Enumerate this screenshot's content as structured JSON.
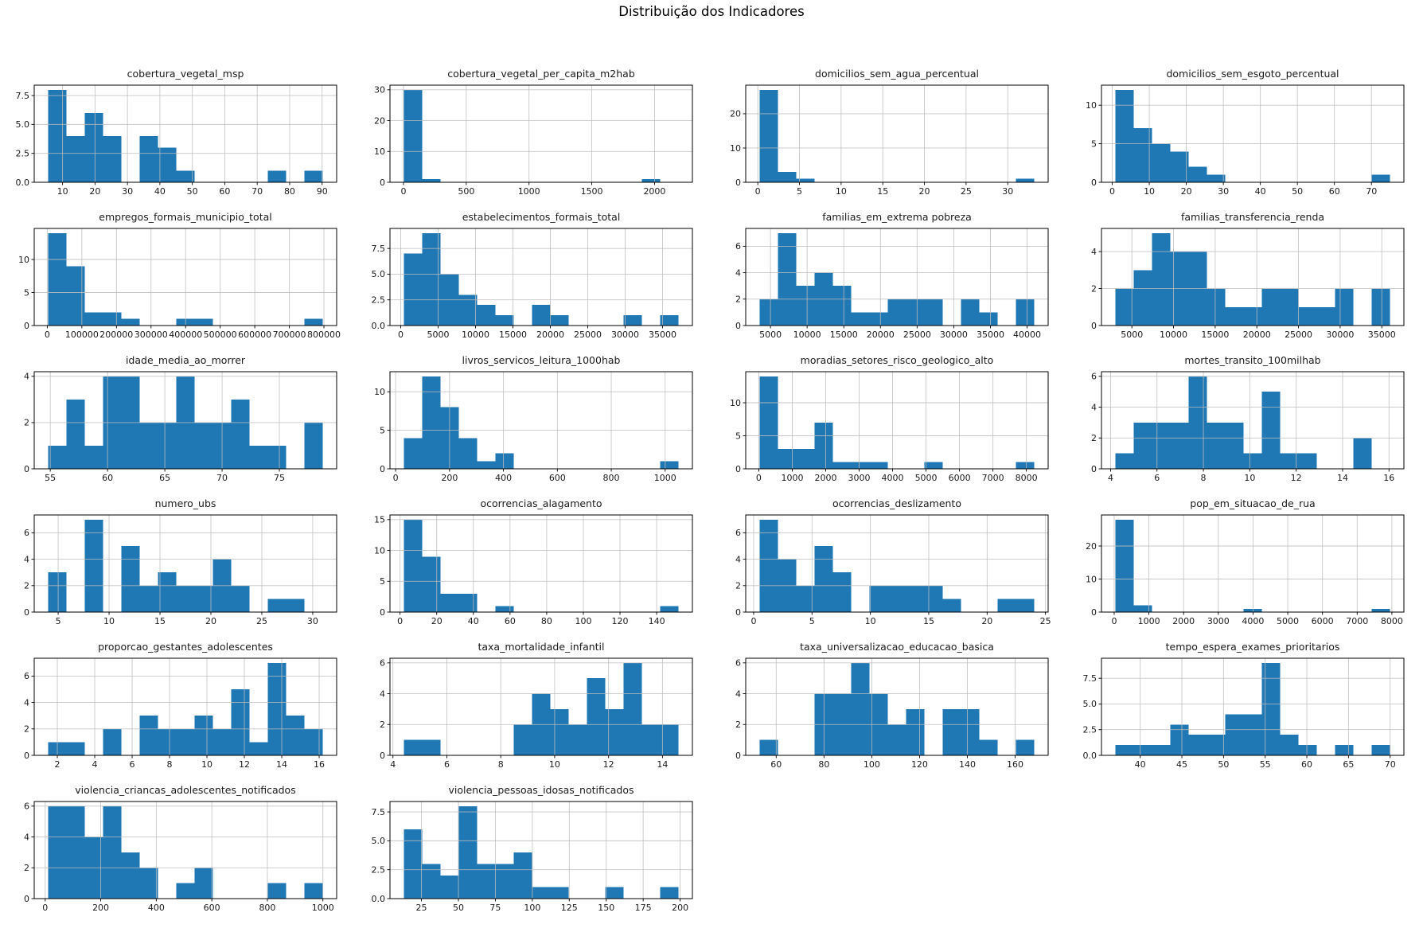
{
  "figure": {
    "suptitle": "Distribuição dos Indicadores"
  },
  "style": {
    "bar_color": "#1f77b4",
    "grid_color": "#bdbdbd",
    "spine_color": "#000000",
    "text_color": "#1a1a1a"
  },
  "chart_data": [
    {
      "type": "histogram",
      "title": "cobertura_vegetal_msp",
      "bin_start": 5.5,
      "bin_width": 5.65,
      "counts": [
        8,
        4,
        6,
        4,
        0,
        4,
        3,
        1,
        0,
        0,
        0,
        0,
        1,
        0,
        1
      ],
      "xtick_vals": [
        10,
        20,
        30,
        40,
        50,
        60,
        70,
        80,
        90
      ],
      "xtick_labels": [
        "10",
        "20",
        "30",
        "40",
        "50",
        "60",
        "70",
        "80",
        "90"
      ],
      "ytick_vals": [
        0,
        2.5,
        5,
        7.5
      ],
      "ytick_labels": [
        "0.0",
        "2.5",
        "5.0",
        "7.5"
      ],
      "ymax": 8
    },
    {
      "type": "histogram",
      "title": "cobertura_vegetal_per_capita_m2hab",
      "bin_start": 2,
      "bin_width": 146,
      "counts": [
        30,
        1,
        0,
        0,
        0,
        0,
        0,
        0,
        0,
        0,
        0,
        0,
        0,
        1,
        0
      ],
      "xtick_vals": [
        0,
        500,
        1000,
        1500,
        2000
      ],
      "xtick_labels": [
        "0",
        "500",
        "1000",
        "1500",
        "2000"
      ],
      "ytick_vals": [
        0,
        10,
        20,
        30
      ],
      "ytick_labels": [
        "0",
        "10",
        "20",
        "30"
      ],
      "ymax": 30
    },
    {
      "type": "histogram",
      "title": "domicilios_sem_agua_percentual",
      "bin_start": 0.2,
      "bin_width": 2.2,
      "counts": [
        27,
        3,
        1,
        0,
        0,
        0,
        0,
        0,
        0,
        0,
        0,
        0,
        0,
        0,
        1
      ],
      "xtick_vals": [
        0,
        5,
        10,
        15,
        20,
        25,
        30
      ],
      "xtick_labels": [
        "0",
        "5",
        "10",
        "15",
        "20",
        "25",
        "30"
      ],
      "ytick_vals": [
        0,
        10,
        20
      ],
      "ytick_labels": [
        "0",
        "10",
        "20"
      ],
      "ymax": 27
    },
    {
      "type": "histogram",
      "title": "domicilios_sem_esgoto_percentual",
      "bin_start": 0.8,
      "bin_width": 4.95,
      "counts": [
        12,
        7,
        5,
        4,
        2,
        1,
        0,
        0,
        0,
        0,
        0,
        0,
        0,
        0,
        1
      ],
      "xtick_vals": [
        0,
        10,
        20,
        30,
        40,
        50,
        60,
        70
      ],
      "xtick_labels": [
        "0",
        "10",
        "20",
        "30",
        "40",
        "50",
        "60",
        "70"
      ],
      "ytick_vals": [
        0,
        5,
        10
      ],
      "ytick_labels": [
        "0",
        "5",
        "10"
      ],
      "ymax": 12
    },
    {
      "type": "histogram",
      "title": "empregos_formais_municipio_total",
      "bin_start": 2000,
      "bin_width": 53000,
      "counts": [
        14,
        9,
        2,
        2,
        1,
        0,
        0,
        1,
        1,
        0,
        0,
        0,
        0,
        0,
        1
      ],
      "xtick_vals": [
        0,
        100000,
        200000,
        300000,
        400000,
        500000,
        600000,
        700000,
        800000
      ],
      "xtick_labels": [
        "0",
        "100000",
        "200000",
        "300000",
        "400000",
        "500000",
        "600000",
        "700000",
        "800000"
      ],
      "ytick_vals": [
        0,
        5,
        10
      ],
      "ytick_labels": [
        "0",
        "5",
        "10"
      ],
      "ymax": 14
    },
    {
      "type": "histogram",
      "title": "estabelecimentos_formais_total",
      "bin_start": 400,
      "bin_width": 2450,
      "counts": [
        7,
        9,
        5,
        3,
        2,
        1,
        0,
        2,
        1,
        0,
        0,
        0,
        1,
        0,
        1
      ],
      "xtick_vals": [
        0,
        5000,
        10000,
        15000,
        20000,
        25000,
        30000,
        35000
      ],
      "xtick_labels": [
        "0",
        "5000",
        "10000",
        "15000",
        "20000",
        "25000",
        "30000",
        "35000"
      ],
      "ytick_vals": [
        0,
        2.5,
        5,
        7.5
      ],
      "ytick_labels": [
        "0.0",
        "2.5",
        "5.0",
        "7.5"
      ],
      "ymax": 9
    },
    {
      "type": "histogram",
      "title": "familias_em_extrema pobreza",
      "bin_start": 3500,
      "bin_width": 2500,
      "counts": [
        2,
        7,
        3,
        4,
        3,
        1,
        1,
        2,
        2,
        2,
        0,
        2,
        1,
        0,
        2
      ],
      "xtick_vals": [
        5000,
        10000,
        15000,
        20000,
        25000,
        30000,
        35000,
        40000
      ],
      "xtick_labels": [
        "5000",
        "10000",
        "15000",
        "20000",
        "25000",
        "30000",
        "35000",
        "40000"
      ],
      "ytick_vals": [
        0,
        2,
        4,
        6
      ],
      "ytick_labels": [
        "0",
        "2",
        "4",
        "6"
      ],
      "ymax": 7
    },
    {
      "type": "histogram",
      "title": "familias_transferencia_renda",
      "bin_start": 3000,
      "bin_width": 2200,
      "counts": [
        2,
        3,
        5,
        4,
        4,
        2,
        1,
        1,
        2,
        2,
        1,
        1,
        2,
        0,
        2
      ],
      "xtick_vals": [
        5000,
        10000,
        15000,
        20000,
        25000,
        30000,
        35000
      ],
      "xtick_labels": [
        "5000",
        "10000",
        "15000",
        "20000",
        "25000",
        "30000",
        "35000"
      ],
      "ytick_vals": [
        0,
        2,
        4
      ],
      "ytick_labels": [
        "0",
        "2",
        "4"
      ],
      "ymax": 5
    },
    {
      "type": "histogram",
      "title": "idade_media_ao_morrer",
      "bin_start": 54.8,
      "bin_width": 1.6,
      "counts": [
        1,
        3,
        1,
        4,
        4,
        2,
        2,
        4,
        2,
        2,
        3,
        1,
        1,
        0,
        2
      ],
      "xtick_vals": [
        55,
        60,
        65,
        70,
        75
      ],
      "xtick_labels": [
        "55",
        "60",
        "65",
        "70",
        "75"
      ],
      "ytick_vals": [
        0,
        2,
        4
      ],
      "ytick_labels": [
        "0",
        "2",
        "4"
      ],
      "ymax": 4
    },
    {
      "type": "histogram",
      "title": "livros_servicos_leitura_1000hab",
      "bin_start": 30,
      "bin_width": 68,
      "counts": [
        4,
        12,
        8,
        4,
        1,
        2,
        0,
        0,
        0,
        0,
        0,
        0,
        0,
        0,
        1
      ],
      "xtick_vals": [
        0,
        200,
        400,
        600,
        800,
        1000
      ],
      "xtick_labels": [
        "0",
        "200",
        "400",
        "600",
        "800",
        "1000"
      ],
      "ytick_vals": [
        0,
        5,
        10
      ],
      "ytick_labels": [
        "0",
        "5",
        "10"
      ],
      "ymax": 12
    },
    {
      "type": "histogram",
      "title": "moradias_setores_risco_geologico_alto",
      "bin_start": 20,
      "bin_width": 548,
      "counts": [
        14,
        3,
        3,
        7,
        1,
        1,
        1,
        0,
        0,
        1,
        0,
        0,
        0,
        0,
        1
      ],
      "xtick_vals": [
        0,
        1000,
        2000,
        3000,
        4000,
        5000,
        6000,
        7000,
        8000
      ],
      "xtick_labels": [
        "0",
        "1000",
        "2000",
        "3000",
        "4000",
        "5000",
        "6000",
        "7000",
        "8000"
      ],
      "ytick_vals": [
        0,
        5,
        10
      ],
      "ytick_labels": [
        "0",
        "5",
        "10"
      ],
      "ymax": 14
    },
    {
      "type": "histogram",
      "title": "mortes_transito_100milhab",
      "bin_start": 4.2,
      "bin_width": 0.79,
      "counts": [
        1,
        3,
        3,
        3,
        6,
        3,
        3,
        1,
        5,
        1,
        1,
        0,
        0,
        2,
        0
      ],
      "xtick_vals": [
        4,
        6,
        8,
        10,
        12,
        14,
        16
      ],
      "xtick_labels": [
        "4",
        "6",
        "8",
        "10",
        "12",
        "14",
        "16"
      ],
      "ytick_vals": [
        0,
        2,
        4,
        6
      ],
      "ytick_labels": [
        "0",
        "2",
        "4",
        "6"
      ],
      "ymax": 6
    },
    {
      "type": "histogram",
      "title": "numero_ubs",
      "bin_start": 4,
      "bin_width": 1.8,
      "counts": [
        3,
        0,
        7,
        0,
        5,
        2,
        3,
        2,
        2,
        4,
        2,
        0,
        1,
        1,
        0
      ],
      "xtick_vals": [
        5,
        10,
        15,
        20,
        25,
        30
      ],
      "xtick_labels": [
        "5",
        "10",
        "15",
        "20",
        "25",
        "30"
      ],
      "ytick_vals": [
        0,
        2,
        4,
        6
      ],
      "ytick_labels": [
        "0",
        "2",
        "4",
        "6"
      ],
      "ymax": 7
    },
    {
      "type": "histogram",
      "title": "ocorrencias_alagamento",
      "bin_start": 2,
      "bin_width": 10,
      "counts": [
        15,
        9,
        3,
        3,
        0,
        1,
        0,
        0,
        0,
        0,
        0,
        0,
        0,
        0,
        1
      ],
      "xtick_vals": [
        0,
        20,
        40,
        60,
        80,
        100,
        120,
        140
      ],
      "xtick_labels": [
        "0",
        "20",
        "40",
        "60",
        "80",
        "100",
        "120",
        "140"
      ],
      "ytick_vals": [
        0,
        5,
        10,
        15
      ],
      "ytick_labels": [
        "0",
        "5",
        "10",
        "15"
      ],
      "ymax": 15
    },
    {
      "type": "histogram",
      "title": "ocorrencias_deslizamento",
      "bin_start": 0.5,
      "bin_width": 1.57,
      "counts": [
        7,
        4,
        2,
        5,
        3,
        0,
        2,
        2,
        2,
        2,
        1,
        0,
        0,
        1,
        1
      ],
      "xtick_vals": [
        0,
        5,
        10,
        15,
        20,
        25
      ],
      "xtick_labels": [
        "0",
        "5",
        "10",
        "15",
        "20",
        "25"
      ],
      "ytick_vals": [
        0,
        2,
        4,
        6
      ],
      "ytick_labels": [
        "0",
        "2",
        "4",
        "6"
      ],
      "ymax": 7
    },
    {
      "type": "histogram",
      "title": "pop_em_situacao_de_rua",
      "bin_start": 30,
      "bin_width": 528,
      "counts": [
        28,
        2,
        0,
        0,
        0,
        0,
        0,
        1,
        0,
        0,
        0,
        0,
        0,
        0,
        1
      ],
      "xtick_vals": [
        0,
        1000,
        2000,
        3000,
        4000,
        5000,
        6000,
        7000,
        8000
      ],
      "xtick_labels": [
        "0",
        "1000",
        "2000",
        "3000",
        "4000",
        "5000",
        "6000",
        "7000",
        "8000"
      ],
      "ytick_vals": [
        0,
        10,
        20
      ],
      "ytick_labels": [
        "0",
        "10",
        "20"
      ],
      "ymax": 28
    },
    {
      "type": "histogram",
      "title": "proporcao_gestantes_adolescentes",
      "bin_start": 1.5,
      "bin_width": 0.98,
      "counts": [
        1,
        1,
        0,
        2,
        0,
        3,
        2,
        2,
        3,
        2,
        5,
        1,
        7,
        3,
        2
      ],
      "xtick_vals": [
        2,
        4,
        6,
        8,
        10,
        12,
        14,
        16
      ],
      "xtick_labels": [
        "2",
        "4",
        "6",
        "8",
        "10",
        "12",
        "14",
        "16"
      ],
      "ytick_vals": [
        0,
        2,
        4,
        6
      ],
      "ytick_labels": [
        "0",
        "2",
        "4",
        "6"
      ],
      "ymax": 7
    },
    {
      "type": "histogram",
      "title": "taxa_mortalidade_infantil",
      "bin_start": 4.4,
      "bin_width": 0.68,
      "counts": [
        1,
        1,
        0,
        0,
        0,
        0,
        2,
        4,
        3,
        2,
        5,
        3,
        6,
        2,
        2
      ],
      "xtick_vals": [
        4,
        6,
        8,
        10,
        12,
        14
      ],
      "xtick_labels": [
        "4",
        "6",
        "8",
        "10",
        "12",
        "14"
      ],
      "ytick_vals": [
        0,
        2,
        4,
        6
      ],
      "ytick_labels": [
        "0",
        "2",
        "4",
        "6"
      ],
      "ymax": 6
    },
    {
      "type": "histogram",
      "title": "taxa_universalizacao_educacao_basica",
      "bin_start": 53,
      "bin_width": 7.67,
      "counts": [
        1,
        0,
        0,
        4,
        4,
        6,
        4,
        2,
        3,
        0,
        3,
        3,
        1,
        0,
        1
      ],
      "xtick_vals": [
        60,
        80,
        100,
        120,
        140,
        160
      ],
      "xtick_labels": [
        "60",
        "80",
        "100",
        "120",
        "140",
        "160"
      ],
      "ytick_vals": [
        0,
        2,
        4,
        6
      ],
      "ytick_labels": [
        "0",
        "2",
        "4",
        "6"
      ],
      "ymax": 6
    },
    {
      "type": "histogram",
      "title": "tempo_espera_exames_prioritarios",
      "bin_start": 37,
      "bin_width": 2.2,
      "counts": [
        1,
        1,
        1,
        3,
        2,
        2,
        4,
        4,
        9,
        2,
        1,
        0,
        1,
        0,
        1
      ],
      "xtick_vals": [
        40,
        45,
        50,
        55,
        60,
        65,
        70
      ],
      "xtick_labels": [
        "40",
        "45",
        "50",
        "55",
        "60",
        "65",
        "70"
      ],
      "ytick_vals": [
        0,
        2.5,
        5,
        7.5
      ],
      "ytick_labels": [
        "0.0",
        "2.5",
        "5.0",
        "7.5"
      ],
      "ymax": 9
    },
    {
      "type": "histogram",
      "title": "violencia_criancas_adolescentes_notificados",
      "bin_start": 10,
      "bin_width": 66,
      "counts": [
        6,
        6,
        4,
        6,
        3,
        2,
        0,
        1,
        2,
        0,
        0,
        0,
        1,
        0,
        1
      ],
      "xtick_vals": [
        0,
        200,
        400,
        600,
        800,
        1000
      ],
      "xtick_labels": [
        "0",
        "200",
        "400",
        "600",
        "800",
        "1000"
      ],
      "ytick_vals": [
        0,
        2,
        4,
        6
      ],
      "ytick_labels": [
        "0",
        "2",
        "4",
        "6"
      ],
      "ymax": 6
    },
    {
      "type": "histogram",
      "title": "violencia_pessoas_idosas_notificados",
      "bin_start": 13,
      "bin_width": 12.4,
      "counts": [
        6,
        3,
        2,
        8,
        3,
        3,
        4,
        1,
        1,
        0,
        0,
        1,
        0,
        0,
        1
      ],
      "xtick_vals": [
        25,
        50,
        75,
        100,
        125,
        150,
        175,
        200
      ],
      "xtick_labels": [
        "25",
        "50",
        "75",
        "100",
        "125",
        "150",
        "175",
        "200"
      ],
      "ytick_vals": [
        0,
        2.5,
        5,
        7.5
      ],
      "ytick_labels": [
        "0.0",
        "2.5",
        "5.0",
        "7.5"
      ],
      "ymax": 8
    }
  ]
}
